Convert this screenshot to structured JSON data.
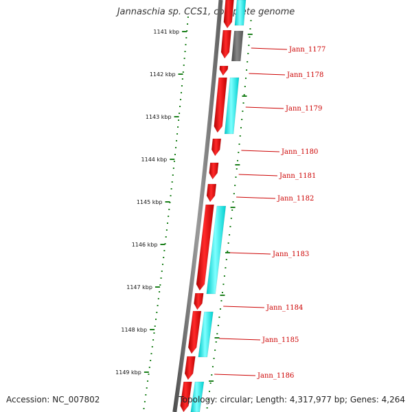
{
  "header": {
    "title": "Jannaschia sp. CCS1, complete genome"
  },
  "footer": {
    "accession": "Accession: NC_007802",
    "topology": "Topology: circular; Length: 4,317,977 bp; Genes: 4,264"
  },
  "colors": {
    "backbone": "#808080",
    "forward_cds": "#ff0000",
    "cyan_track": "#00ffff",
    "gray_track": "#707070",
    "ruler": "#1a7f1a",
    "gene_label": "#cc0000"
  },
  "ruler": {
    "ticks": [
      "1141 kbp",
      "1142 kbp",
      "1143 kbp",
      "1144 kbp",
      "1145 kbp",
      "1146 kbp",
      "1147 kbp",
      "1148 kbp",
      "1149 kbp"
    ]
  },
  "genes": [
    {
      "label": "Jann_1177"
    },
    {
      "label": "Jann_1178"
    },
    {
      "label": "Jann_1179"
    },
    {
      "label": "Jann_1180"
    },
    {
      "label": "Jann_1181"
    },
    {
      "label": "Jann_1182"
    },
    {
      "label": "Jann_1183"
    },
    {
      "label": "Jann_1184"
    },
    {
      "label": "Jann_1185"
    },
    {
      "label": "Jann_1186"
    }
  ]
}
